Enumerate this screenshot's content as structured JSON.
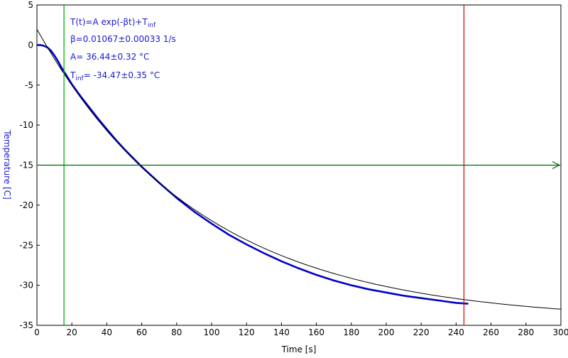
{
  "chart_data": {
    "type": "line",
    "xlabel": "Time [s]",
    "ylabel": "Temperature [C]",
    "xlim": [
      0,
      300
    ],
    "ylim": [
      -35,
      5
    ],
    "x_ticks": [
      0,
      20,
      40,
      60,
      80,
      100,
      120,
      140,
      160,
      180,
      200,
      220,
      240,
      260,
      280,
      300
    ],
    "y_ticks": [
      5,
      0,
      -5,
      -10,
      -15,
      -20,
      -25,
      -30,
      -35
    ],
    "grid": false,
    "legend": "none",
    "annotations": {
      "formula_main": "T(t)=A exp(-βt)+T",
      "formula_sub": "inf",
      "beta": "β=0.01067±0.00033 1/s",
      "amplitude": "A= 36.44±0.32 °C",
      "tinf_main": "T",
      "tinf_sub": "inf",
      "tinf_value": "= -34.47±0.35 °C"
    },
    "fit": {
      "A": 36.44,
      "beta": 0.01067,
      "T_inf": -34.47,
      "x_start": 0,
      "x_end": 300
    },
    "measured": {
      "x": [
        0,
        2,
        4,
        6,
        8,
        10,
        12,
        14,
        16,
        18,
        20,
        25,
        30,
        35,
        40,
        45,
        50,
        55,
        60,
        70,
        80,
        90,
        100,
        110,
        120,
        130,
        140,
        150,
        160,
        170,
        180,
        190,
        200,
        210,
        220,
        230,
        240,
        247
      ],
      "y": [
        0,
        0,
        -0.1,
        -0.3,
        -0.7,
        -1.3,
        -2.0,
        -2.8,
        -3.5,
        -4.2,
        -4.9,
        -6.4,
        -7.8,
        -9.2,
        -10.5,
        -11.8,
        -13.0,
        -14.1,
        -15.2,
        -17.2,
        -19.1,
        -20.8,
        -22.3,
        -23.7,
        -24.9,
        -26.0,
        -27.0,
        -27.9,
        -28.7,
        -29.4,
        -30.0,
        -30.5,
        -30.9,
        -31.3,
        -31.6,
        -31.9,
        -32.2,
        -32.3
      ]
    },
    "cursors": {
      "green_vertical_x": 15.5,
      "red_vertical_x": 244.5,
      "horizontal_y": -15
    },
    "colors": {
      "data": "#0000c8",
      "fit": "#000000",
      "text": "#1a1ad0",
      "green_cursor": "#00b400",
      "red_cursor": "#c81414",
      "horizontal_cursor": "#006400"
    }
  }
}
